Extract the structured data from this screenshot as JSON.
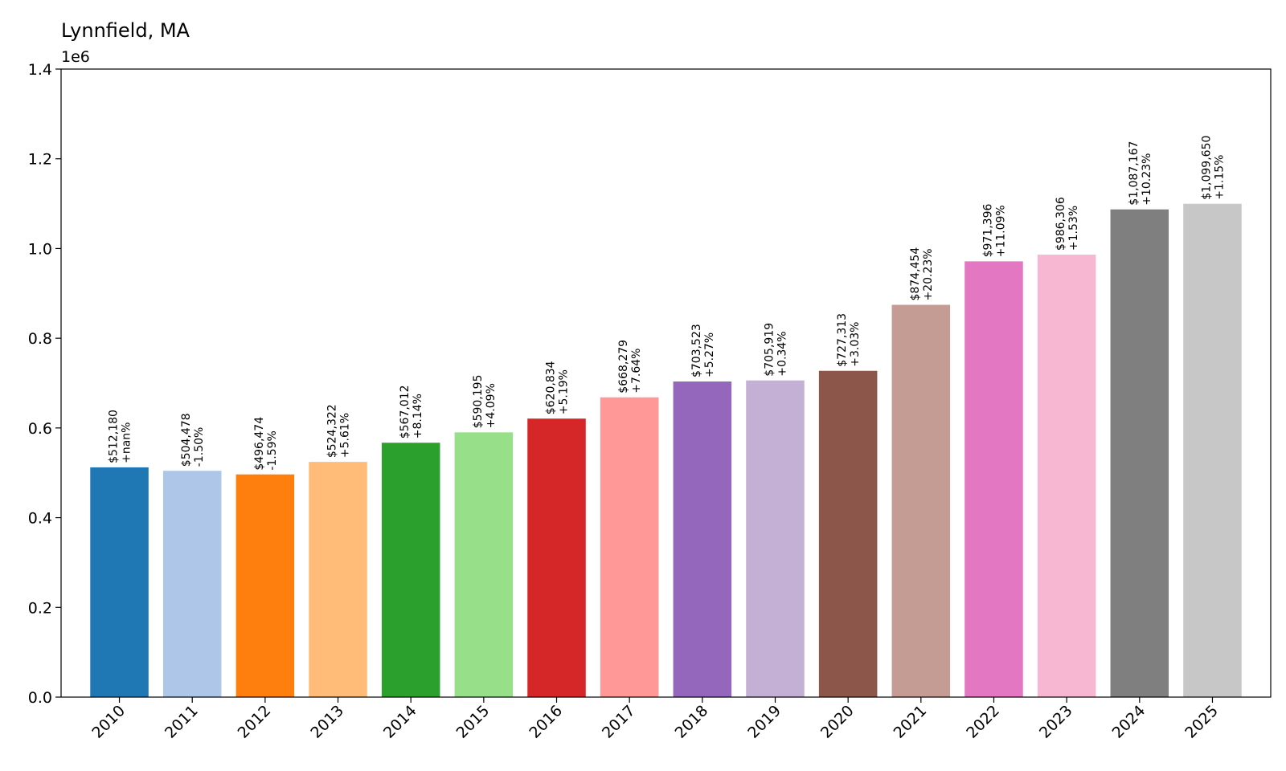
{
  "chart_data": {
    "type": "bar",
    "title": "Lynnfield, MA",
    "y_offset_label": "1e6",
    "xlabel": "",
    "ylabel": "",
    "ylim": [
      0,
      1.4
    ],
    "yticks": [
      "0.0",
      "0.2",
      "0.4",
      "0.6",
      "0.8",
      "1.0",
      "1.2",
      "1.4"
    ],
    "grid": false,
    "categories": [
      "2010",
      "2011",
      "2012",
      "2013",
      "2014",
      "2015",
      "2016",
      "2017",
      "2018",
      "2019",
      "2020",
      "2021",
      "2022",
      "2023",
      "2024",
      "2025"
    ],
    "values": [
      512180,
      504478,
      496474,
      524322,
      567012,
      590195,
      620834,
      668279,
      703523,
      705919,
      727313,
      874454,
      971396,
      986306,
      1087167,
      1099650
    ],
    "value_labels": [
      "$512,180",
      "$504,478",
      "$496,474",
      "$524,322",
      "$567,012",
      "$590,195",
      "$620,834",
      "$668,279",
      "$703,523",
      "$705,919",
      "$727,313",
      "$874,454",
      "$971,396",
      "$986,306",
      "$1,087,167",
      "$1,099,650"
    ],
    "change_labels": [
      "+nan%",
      "-1.50%",
      "-1.59%",
      "+5.61%",
      "+8.14%",
      "+4.09%",
      "+5.19%",
      "+7.64%",
      "+5.27%",
      "+0.34%",
      "+3.03%",
      "+20.23%",
      "+11.09%",
      "+1.53%",
      "+10.23%",
      "+1.15%"
    ],
    "colors": [
      "#1f77b4",
      "#aec7e8",
      "#ff7f0e",
      "#ffbb78",
      "#2ca02c",
      "#98df8a",
      "#d62728",
      "#ff9896",
      "#9467bd",
      "#c5b0d5",
      "#8c564b",
      "#c49c94",
      "#e377c2",
      "#f7b6d2",
      "#7f7f7f",
      "#c7c7c7"
    ]
  }
}
